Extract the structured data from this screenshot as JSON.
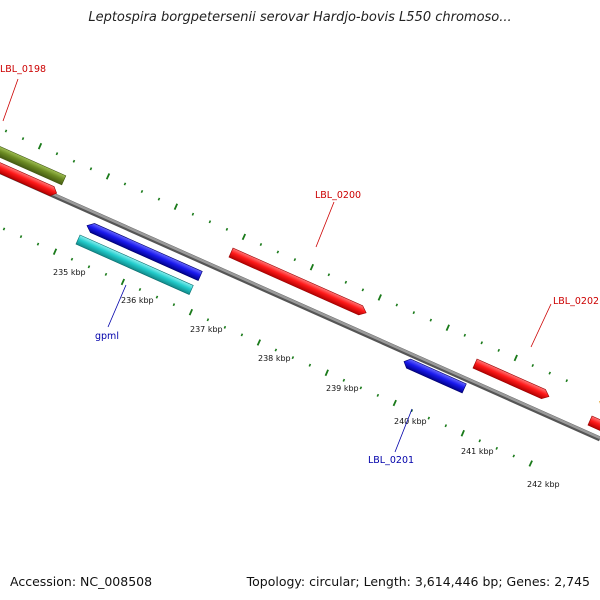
{
  "title": "Leptospira borgpetersenii serovar Hardjo-bovis L550 chromoso...",
  "footer": {
    "accession": "Accession: NC_008508",
    "topology": "Topology: circular; Length: 3,614,446 bp; Genes: 2,745"
  },
  "colors": {
    "backbone": "#808080",
    "tick": "#1a7a1a",
    "forward_label": "#cc0000",
    "reverse_label": "#0000aa",
    "red_gene": "#ff1a1a",
    "blue_gene": "#1a1aee",
    "cyan_gene": "#22cccc",
    "olive_gene": "#6b8a22",
    "orange_gene": "#e69a1a"
  },
  "ticks": [
    {
      "label": "235 kbp"
    },
    {
      "label": "236 kbp"
    },
    {
      "label": "237 kbp"
    },
    {
      "label": "238 kbp"
    },
    {
      "label": "239 kbp"
    },
    {
      "label": "240 kbp"
    },
    {
      "label": "241 kbp"
    },
    {
      "label": "242 kbp"
    }
  ],
  "gene_labels": [
    {
      "name": "LBL_0198",
      "strand": "forward"
    },
    {
      "name": "LBL_0200",
      "strand": "forward"
    },
    {
      "name": "LBL_0202",
      "strand": "forward"
    },
    {
      "name": "gpml",
      "strand": "reverse"
    },
    {
      "name": "LBL_0201",
      "strand": "reverse"
    }
  ]
}
